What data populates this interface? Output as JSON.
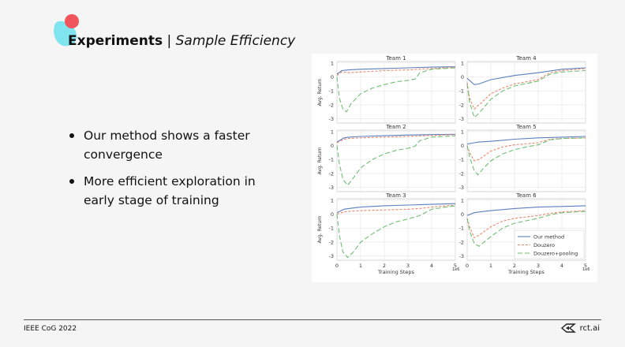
{
  "slide": {
    "title_main": "Experiments",
    "title_sep": " | ",
    "title_sub": "Sample Efficiency",
    "bullets": [
      "Our method shows a faster convergence",
      "More efficient exploration in early stage of training"
    ],
    "footer_left": "IEEE CoG 2022",
    "footer_right": "rct.ai"
  },
  "colors": {
    "blob_red": "#f2545b",
    "blob_cyan": "#7fe4ee",
    "our_method": "#5b7fbf",
    "douzero": "#e8866a",
    "douzero_pooling": "#6fbf73"
  },
  "chart_data": {
    "type": "line",
    "xlabel": "Training Steps",
    "ylabel": "Avg. Return",
    "x_multiplier": "1e6",
    "xlim": [
      0,
      5
    ],
    "ylim": [
      -3.3,
      1.1
    ],
    "xticks": [
      "0",
      "1",
      "2",
      "3",
      "4",
      "5"
    ],
    "yticks": [
      "1",
      "0",
      "-1",
      "-2",
      "-3"
    ],
    "legend": [
      "Our method",
      "Douzero",
      "Douzero+pooling"
    ],
    "legend_panel": "Team 6",
    "panels": [
      {
        "title": "Team 1",
        "series": [
          {
            "name": "Our method",
            "points": [
              [
                0,
                0.2
              ],
              [
                0.2,
                0.45
              ],
              [
                0.5,
                0.5
              ],
              [
                1,
                0.55
              ],
              [
                2,
                0.6
              ],
              [
                3,
                0.65
              ],
              [
                4,
                0.7
              ],
              [
                5,
                0.72
              ]
            ]
          },
          {
            "name": "Douzero",
            "points": [
              [
                0,
                0.1
              ],
              [
                0.2,
                0.35
              ],
              [
                0.5,
                0.3
              ],
              [
                1,
                0.35
              ],
              [
                2,
                0.45
              ],
              [
                3,
                0.5
              ],
              [
                4,
                0.6
              ],
              [
                5,
                0.7
              ]
            ]
          },
          {
            "name": "Douzero+pooling",
            "points": [
              [
                0,
                0
              ],
              [
                0.1,
                -1.5
              ],
              [
                0.25,
                -2.3
              ],
              [
                0.4,
                -2.5
              ],
              [
                0.6,
                -1.9
              ],
              [
                1,
                -1.2
              ],
              [
                1.5,
                -0.8
              ],
              [
                2,
                -0.55
              ],
              [
                2.5,
                -0.35
              ],
              [
                3,
                -0.25
              ],
              [
                3.3,
                -0.15
              ],
              [
                3.5,
                0.3
              ],
              [
                4,
                0.55
              ],
              [
                5,
                0.65
              ]
            ]
          }
        ]
      },
      {
        "title": "Team 4",
        "series": [
          {
            "name": "Our method",
            "points": [
              [
                0,
                -0.1
              ],
              [
                0.3,
                -0.55
              ],
              [
                0.5,
                -0.5
              ],
              [
                1,
                -0.2
              ],
              [
                2,
                0.1
              ],
              [
                3,
                0.3
              ],
              [
                4,
                0.55
              ],
              [
                5,
                0.65
              ]
            ]
          },
          {
            "name": "Douzero",
            "points": [
              [
                0,
                -0.4
              ],
              [
                0.1,
                -1.5
              ],
              [
                0.3,
                -2.3
              ],
              [
                0.5,
                -2.0
              ],
              [
                1,
                -1.2
              ],
              [
                1.5,
                -0.8
              ],
              [
                2,
                -0.5
              ],
              [
                3,
                -0.2
              ],
              [
                3.5,
                0.3
              ],
              [
                4,
                0.45
              ],
              [
                5,
                0.6
              ]
            ]
          },
          {
            "name": "Douzero+pooling",
            "points": [
              [
                0,
                -0.5
              ],
              [
                0.1,
                -1.8
              ],
              [
                0.3,
                -2.9
              ],
              [
                0.5,
                -2.6
              ],
              [
                1,
                -1.6
              ],
              [
                1.5,
                -1.0
              ],
              [
                2,
                -0.65
              ],
              [
                3,
                -0.3
              ],
              [
                3.5,
                0.2
              ],
              [
                4,
                0.35
              ],
              [
                5,
                0.45
              ]
            ]
          }
        ]
      },
      {
        "title": "Team 2",
        "series": [
          {
            "name": "Our method",
            "points": [
              [
                0,
                0.25
              ],
              [
                0.3,
                0.55
              ],
              [
                0.5,
                0.6
              ],
              [
                1,
                0.65
              ],
              [
                2,
                0.7
              ],
              [
                3,
                0.75
              ],
              [
                4,
                0.78
              ],
              [
                5,
                0.8
              ]
            ]
          },
          {
            "name": "Douzero",
            "points": [
              [
                0,
                0.2
              ],
              [
                0.3,
                0.45
              ],
              [
                0.5,
                0.5
              ],
              [
                1,
                0.55
              ],
              [
                2,
                0.6
              ],
              [
                3,
                0.65
              ],
              [
                4,
                0.72
              ],
              [
                5,
                0.78
              ]
            ]
          },
          {
            "name": "Douzero+pooling",
            "points": [
              [
                0,
                0
              ],
              [
                0.1,
                -1.3
              ],
              [
                0.25,
                -2.4
              ],
              [
                0.45,
                -2.85
              ],
              [
                0.7,
                -2.3
              ],
              [
                1,
                -1.6
              ],
              [
                1.5,
                -1.0
              ],
              [
                2,
                -0.6
              ],
              [
                2.5,
                -0.35
              ],
              [
                3,
                -0.2
              ],
              [
                3.3,
                -0.05
              ],
              [
                3.5,
                0.35
              ],
              [
                4,
                0.6
              ],
              [
                5,
                0.7
              ]
            ]
          }
        ]
      },
      {
        "title": "Team 5",
        "series": [
          {
            "name": "Our method",
            "points": [
              [
                0,
                0.1
              ],
              [
                0.3,
                0.2
              ],
              [
                0.5,
                0.25
              ],
              [
                1,
                0.3
              ],
              [
                2,
                0.45
              ],
              [
                3,
                0.55
              ],
              [
                4,
                0.6
              ],
              [
                5,
                0.65
              ]
            ]
          },
          {
            "name": "Douzero",
            "points": [
              [
                0,
                0
              ],
              [
                0.1,
                -0.5
              ],
              [
                0.3,
                -1.1
              ],
              [
                0.5,
                -1.0
              ],
              [
                1,
                -0.4
              ],
              [
                1.5,
                -0.1
              ],
              [
                2,
                0.05
              ],
              [
                3,
                0.2
              ],
              [
                3.5,
                0.45
              ],
              [
                4,
                0.5
              ],
              [
                5,
                0.55
              ]
            ]
          },
          {
            "name": "Douzero+pooling",
            "points": [
              [
                0,
                0
              ],
              [
                0.1,
                -0.8
              ],
              [
                0.3,
                -1.8
              ],
              [
                0.45,
                -2.1
              ],
              [
                0.7,
                -1.6
              ],
              [
                1,
                -1.1
              ],
              [
                1.5,
                -0.6
              ],
              [
                2,
                -0.3
              ],
              [
                2.5,
                -0.1
              ],
              [
                3,
                0.05
              ],
              [
                3.5,
                0.4
              ],
              [
                4,
                0.5
              ],
              [
                5,
                0.55
              ]
            ]
          }
        ]
      },
      {
        "title": "Team 3",
        "series": [
          {
            "name": "Our method",
            "points": [
              [
                0,
                0.1
              ],
              [
                0.3,
                0.35
              ],
              [
                0.5,
                0.4
              ],
              [
                1,
                0.5
              ],
              [
                2,
                0.6
              ],
              [
                3,
                0.65
              ],
              [
                4,
                0.7
              ],
              [
                5,
                0.75
              ]
            ]
          },
          {
            "name": "Douzero",
            "points": [
              [
                0,
                0
              ],
              [
                0.3,
                0.15
              ],
              [
                0.5,
                0.2
              ],
              [
                1,
                0.25
              ],
              [
                2,
                0.3
              ],
              [
                3,
                0.35
              ],
              [
                3.5,
                0.4
              ],
              [
                4,
                0.5
              ],
              [
                5,
                0.65
              ]
            ]
          },
          {
            "name": "Douzero+pooling",
            "points": [
              [
                0,
                0
              ],
              [
                0.1,
                -1.5
              ],
              [
                0.25,
                -2.7
              ],
              [
                0.45,
                -3.1
              ],
              [
                0.7,
                -2.7
              ],
              [
                1,
                -2.0
              ],
              [
                1.5,
                -1.4
              ],
              [
                2,
                -0.9
              ],
              [
                2.5,
                -0.55
              ],
              [
                3,
                -0.35
              ],
              [
                3.5,
                -0.1
              ],
              [
                4,
                0.35
              ],
              [
                5,
                0.6
              ]
            ]
          }
        ]
      },
      {
        "title": "Team 6",
        "series": [
          {
            "name": "Our method",
            "points": [
              [
                0,
                -0.1
              ],
              [
                0.3,
                0.1
              ],
              [
                0.5,
                0.15
              ],
              [
                1,
                0.25
              ],
              [
                2,
                0.4
              ],
              [
                3,
                0.5
              ],
              [
                4,
                0.55
              ],
              [
                5,
                0.6
              ]
            ]
          },
          {
            "name": "Douzero",
            "points": [
              [
                0,
                -0.3
              ],
              [
                0.1,
                -0.9
              ],
              [
                0.3,
                -1.7
              ],
              [
                0.5,
                -1.5
              ],
              [
                1,
                -0.9
              ],
              [
                1.5,
                -0.5
              ],
              [
                2,
                -0.3
              ],
              [
                3,
                -0.1
              ],
              [
                3.5,
                0.05
              ],
              [
                4,
                0.15
              ],
              [
                5,
                0.25
              ]
            ]
          },
          {
            "name": "Douzero+pooling",
            "points": [
              [
                0,
                -0.3
              ],
              [
                0.1,
                -1.2
              ],
              [
                0.3,
                -2.1
              ],
              [
                0.5,
                -2.3
              ],
              [
                1,
                -1.6
              ],
              [
                1.5,
                -1.0
              ],
              [
                2,
                -0.65
              ],
              [
                3,
                -0.3
              ],
              [
                3.5,
                -0.05
              ],
              [
                4,
                0.1
              ],
              [
                5,
                0.2
              ]
            ]
          }
        ]
      }
    ]
  }
}
